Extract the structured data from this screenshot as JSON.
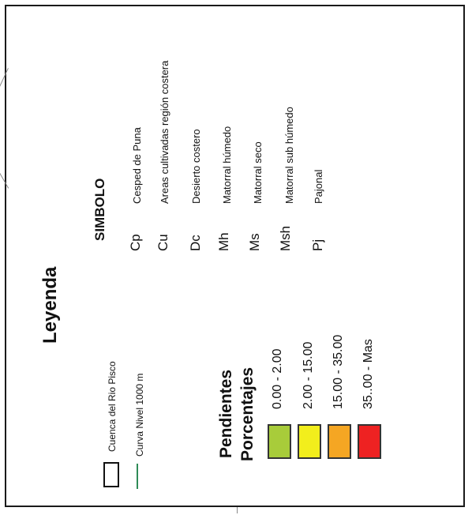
{
  "legend": {
    "title": "Leyenda",
    "symbol_header": "SIMBOLO",
    "symbols": [
      {
        "code": "Cp",
        "desc": "Cesped de Puna"
      },
      {
        "code": "Cu",
        "desc": "Areas cultivadas región costera"
      },
      {
        "code": "Dc",
        "desc": "Desierto costero"
      },
      {
        "code": "Mh",
        "desc": "Matorral húmedo"
      },
      {
        "code": "Ms",
        "desc": "Matorral seco"
      },
      {
        "code": "Msh",
        "desc": "Matorral sub húmedo"
      },
      {
        "code": "Pj",
        "desc": "Pajonal"
      }
    ],
    "basin_label": "Cuenca del Rio Pisco",
    "contour_label": "Curva Nivel 1000 m",
    "contour_color": "#2e8b57",
    "slopes_title_1": "Pendientes",
    "slopes_title_2": "Porcentajes",
    "slopes": [
      {
        "range": "0.00 - 2.00",
        "color": "#a8cc3a"
      },
      {
        "range": "2.00 - 15.00",
        "color": "#f2ee1c"
      },
      {
        "range": "15.00 - 35.00",
        "color": "#f5a623"
      },
      {
        "range": "35..00 - Mas",
        "color": "#ee2222"
      }
    ]
  }
}
